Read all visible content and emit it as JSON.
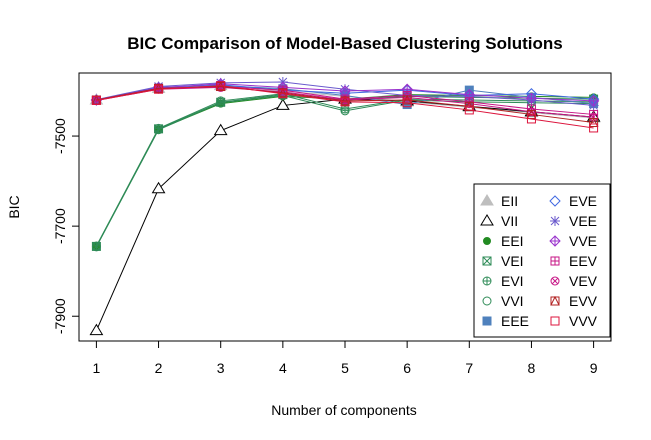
{
  "chart_data": {
    "type": "line",
    "title": "BIC Comparison of Model-Based Clustering Solutions",
    "xlabel": "Number of components",
    "ylabel": "BIC",
    "xlim": [
      0.72,
      9.28
    ],
    "ylim": [
      -7955,
      -7360
    ],
    "x": [
      1,
      2,
      3,
      4,
      5,
      6,
      7,
      8,
      9
    ],
    "x_ticks": [
      1,
      2,
      3,
      4,
      5,
      6,
      7,
      8,
      9
    ],
    "y_ticks": [
      -7500,
      -7700,
      -7900
    ],
    "grid": false,
    "legend_position": "bottom-right",
    "series": [
      {
        "name": "EII",
        "color": "#bebebe",
        "marker": "triangle-filled",
        "values": [
          -7420,
          -7394,
          -7388,
          -7400,
          -7412,
          -7424,
          -7436,
          -7448,
          -7460
        ]
      },
      {
        "name": "VII",
        "color": "#000000",
        "marker": "triangle-open",
        "values": [
          -7932,
          -7617,
          -7488,
          -7432,
          -7418,
          -7422,
          -7434,
          -7446,
          -7458
        ]
      },
      {
        "name": "EEI",
        "color": "#228b22",
        "marker": "circle-filled",
        "values": [
          -7745,
          -7485,
          -7428,
          -7412,
          -7418,
          -7408,
          -7410,
          -7412,
          -7414
        ]
      },
      {
        "name": "VEI",
        "color": "#2e8b57",
        "marker": "square-x",
        "values": [
          -7745,
          -7484,
          -7425,
          -7408,
          -7420,
          -7412,
          -7414,
          -7416,
          -7418
        ]
      },
      {
        "name": "EVI",
        "color": "#2e8b57",
        "marker": "circle-plus",
        "values": [
          -7744,
          -7483,
          -7422,
          -7406,
          -7440,
          -7418,
          -7420,
          -7422,
          -7424
        ]
      },
      {
        "name": "VVI",
        "color": "#2e8b57",
        "marker": "circle-open",
        "values": [
          -7746,
          -7486,
          -7426,
          -7410,
          -7444,
          -7420,
          -7424,
          -7426,
          -7428
        ]
      },
      {
        "name": "EEE",
        "color": "#4f81bd",
        "marker": "square-filled",
        "values": [
          -7420,
          -7394,
          -7388,
          -7395,
          -7410,
          -7430,
          -7398,
          -7414,
          -7428
        ]
      },
      {
        "name": "EVE",
        "color": "#4169e1",
        "marker": "diamond-open",
        "values": [
          -7420,
          -7392,
          -7386,
          -7398,
          -7405,
          -7398,
          -7410,
          -7406,
          -7418
        ]
      },
      {
        "name": "VEE",
        "color": "#6a5acd",
        "marker": "asterisk",
        "values": [
          -7419,
          -7390,
          -7382,
          -7380,
          -7396,
          -7410,
          -7412,
          -7420,
          -7432
        ]
      },
      {
        "name": "VVE",
        "color": "#9932cc",
        "marker": "diamond-plus",
        "values": [
          -7420,
          -7393,
          -7384,
          -7392,
          -7400,
          -7396,
          -7408,
          -7416,
          -7422
        ]
      },
      {
        "name": "EEV",
        "color": "#c71585",
        "marker": "square-plus",
        "values": [
          -7420,
          -7395,
          -7390,
          -7398,
          -7418,
          -7410,
          -7424,
          -7440,
          -7452
        ]
      },
      {
        "name": "VEV",
        "color": "#c71585",
        "marker": "circle-x",
        "values": [
          -7421,
          -7396,
          -7392,
          -7402,
          -7420,
          -7414,
          -7428,
          -7446,
          -7458
        ]
      },
      {
        "name": "EVV",
        "color": "#b22222",
        "marker": "square-triangle",
        "values": [
          -7420,
          -7394,
          -7390,
          -7404,
          -7422,
          -7420,
          -7434,
          -7452,
          -7470
        ]
      },
      {
        "name": "VVV",
        "color": "#dc143c",
        "marker": "square-open",
        "values": [
          -7421,
          -7396,
          -7388,
          -7406,
          -7424,
          -7426,
          -7442,
          -7462,
          -7482
        ]
      }
    ]
  }
}
